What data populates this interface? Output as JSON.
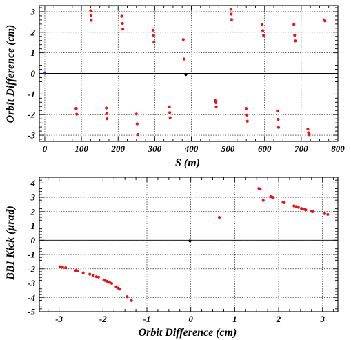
{
  "chart_data": [
    {
      "type": "scatter",
      "title": "",
      "xlabel": "S (m)",
      "ylabel": "Orbit Difference (cm)",
      "xlim": [
        -15,
        800
      ],
      "ylim": [
        -3.3,
        3.3
      ],
      "xticks": [
        0,
        100,
        200,
        300,
        400,
        500,
        600,
        700,
        800
      ],
      "yticks": [
        -3,
        -2,
        -1,
        0,
        1,
        2,
        3
      ],
      "xtick_labels": [
        "0",
        "100",
        "200",
        "300",
        "400",
        "500",
        "600",
        "700",
        "800"
      ],
      "ytick_labels": [
        "-3",
        "-2",
        "-1",
        "0",
        "1",
        "2",
        "3"
      ],
      "grid": true,
      "legend": "none",
      "zero_line": true,
      "series": [
        {
          "color": "#ee1111",
          "points": [
            [
              85,
              -1.7
            ],
            [
              86,
              -1.7
            ],
            [
              87,
              -1.98
            ],
            [
              125,
              3.05
            ],
            [
              126,
              2.8
            ],
            [
              127,
              2.58
            ],
            [
              168,
              -1.68
            ],
            [
              169,
              -1.95
            ],
            [
              170,
              -2.2
            ],
            [
              210,
              2.78
            ],
            [
              212,
              2.43
            ],
            [
              213,
              2.15
            ],
            [
              250,
              -1.97
            ],
            [
              252,
              -2.45
            ],
            [
              254,
              -2.97
            ],
            [
              295,
              2.1
            ],
            [
              297,
              1.85
            ],
            [
              298,
              1.52
            ],
            [
              340,
              -1.62
            ],
            [
              341,
              -1.9
            ],
            [
              342,
              -2.15
            ],
            [
              378,
              1.65
            ],
            [
              380,
              0.7
            ],
            [
              465,
              -1.32
            ],
            [
              467,
              -1.42
            ],
            [
              468,
              -1.62
            ],
            [
              508,
              3.12
            ],
            [
              509,
              2.88
            ],
            [
              510,
              2.62
            ],
            [
              550,
              -1.7
            ],
            [
              552,
              -2.02
            ],
            [
              553,
              -2.32
            ],
            [
              593,
              2.38
            ],
            [
              595,
              2.08
            ],
            [
              597,
              1.85
            ],
            [
              635,
              -1.82
            ],
            [
              637,
              -2.23
            ],
            [
              638,
              -2.62
            ],
            [
              680,
              2.38
            ],
            [
              682,
              1.85
            ],
            [
              684,
              1.58
            ],
            [
              718,
              -2.7
            ],
            [
              720,
              -2.88
            ],
            [
              722,
              -2.98
            ],
            [
              763,
              2.6
            ],
            [
              765,
              2.55
            ]
          ]
        },
        {
          "color": "#1a33cc",
          "points": [
            [
              0,
              0
            ]
          ]
        },
        {
          "color": "#000000",
          "points": [
            [
              385,
              -0.05
            ]
          ]
        }
      ]
    },
    {
      "type": "scatter",
      "title": "",
      "xlabel": "Orbit Difference (cm)",
      "ylabel": "BBI Kick (μrad)",
      "xlim": [
        -3.45,
        3.35
      ],
      "ylim": [
        -5,
        4.4
      ],
      "xticks": [
        -3,
        -2,
        -1,
        0,
        1,
        2,
        3
      ],
      "yticks": [
        -5,
        -4,
        -3,
        -2,
        -1,
        0,
        1,
        2,
        3,
        4
      ],
      "xtick_labels": [
        "-3",
        "-2",
        "-1",
        "0",
        "1",
        "2",
        "3"
      ],
      "ytick_labels": [
        "-5",
        "-4",
        "-3",
        "-2",
        "-1",
        "0",
        "1",
        "2",
        "3",
        "4"
      ],
      "grid": true,
      "legend": "none",
      "zero_line": true,
      "series": [
        {
          "color": "#ee1111",
          "points": [
            [
              -2.98,
              -1.85
            ],
            [
              -2.92,
              -1.88
            ],
            [
              -2.85,
              -1.92
            ],
            [
              -2.62,
              -2.12
            ],
            [
              -2.58,
              -2.15
            ],
            [
              -2.45,
              -2.28
            ],
            [
              -2.3,
              -2.38
            ],
            [
              -2.22,
              -2.45
            ],
            [
              -2.15,
              -2.55
            ],
            [
              -2.1,
              -2.58
            ],
            [
              -1.98,
              -2.78
            ],
            [
              -1.95,
              -2.82
            ],
            [
              -1.9,
              -2.88
            ],
            [
              -1.85,
              -2.95
            ],
            [
              -1.8,
              -3.02
            ],
            [
              -1.7,
              -3.25
            ],
            [
              -1.65,
              -3.35
            ],
            [
              -1.62,
              -3.42
            ],
            [
              -1.45,
              -3.95
            ],
            [
              -1.35,
              -4.22
            ],
            [
              0.65,
              1.6
            ],
            [
              1.55,
              3.62
            ],
            [
              1.58,
              3.58
            ],
            [
              1.65,
              2.78
            ],
            [
              1.82,
              3.05
            ],
            [
              1.85,
              3.02
            ],
            [
              1.88,
              2.98
            ],
            [
              2.1,
              2.65
            ],
            [
              2.13,
              2.62
            ],
            [
              2.35,
              2.4
            ],
            [
              2.4,
              2.35
            ],
            [
              2.45,
              2.3
            ],
            [
              2.52,
              2.22
            ],
            [
              2.55,
              2.18
            ],
            [
              2.6,
              2.15
            ],
            [
              2.62,
              2.12
            ],
            [
              2.75,
              2.02
            ],
            [
              2.78,
              2.0
            ],
            [
              3.05,
              1.85
            ],
            [
              3.12,
              1.8
            ]
          ]
        },
        {
          "color": "#000000",
          "points": [
            [
              -0.02,
              -0.05
            ]
          ]
        }
      ]
    }
  ]
}
